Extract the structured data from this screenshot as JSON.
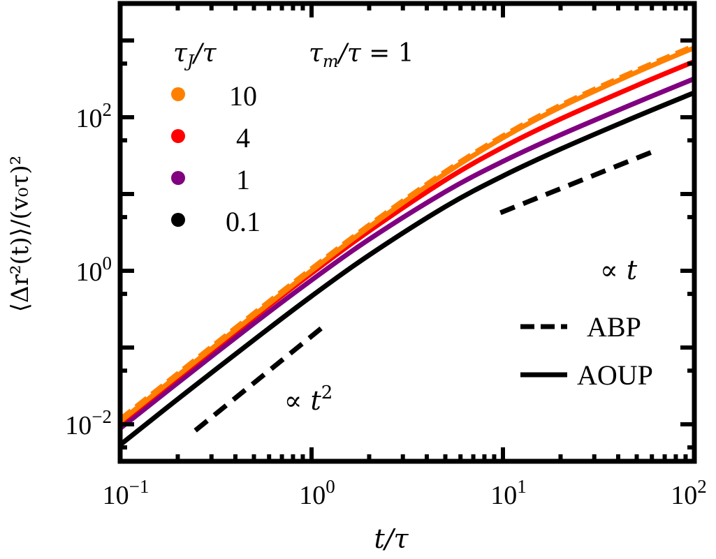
{
  "chart_data": {
    "type": "line",
    "xscale": "log",
    "yscale": "log",
    "xlim": [
      0.1,
      100
    ],
    "ylim": [
      0.0034,
      3000
    ],
    "xlabel": "t/τ",
    "ylabel": "⟨Δr²(t)⟩/(v₀τ)²",
    "xticks": [
      {
        "base": "10",
        "exp": "−1",
        "value": 0.1
      },
      {
        "base": "10",
        "exp": "0",
        "value": 1
      },
      {
        "base": "10",
        "exp": "1",
        "value": 10
      },
      {
        "base": "10",
        "exp": "2",
        "value": 100
      }
    ],
    "yticks": [
      {
        "base": "10",
        "exp": "−2",
        "value": 0.01
      },
      {
        "base": "10",
        "exp": "0",
        "value": 1
      },
      {
        "base": "10",
        "exp": "2",
        "value": 100
      }
    ],
    "legend_title": "τ_J/τ",
    "annotation": "τ_m/τ = 1",
    "legend_placement": "top-left",
    "x": [
      0.1,
      0.2,
      0.5,
      1,
      2,
      5,
      10,
      20,
      50,
      100
    ],
    "series": [
      {
        "name": "10",
        "model": "AOUP",
        "style": "solid",
        "color": "#ff8000",
        "values": [
          0.0109,
          0.0432,
          0.263,
          1.005,
          3.72,
          18.5,
          54,
          135.6,
          386,
          804
        ]
      },
      {
        "name": "10",
        "model": "ABP",
        "style": "dashed",
        "color": "#ff8000",
        "values": [
          0.0116,
          0.0458,
          0.279,
          1.065,
          3.94,
          19.6,
          57.2,
          143.7,
          409,
          852
        ]
      },
      {
        "name": "4",
        "model": "AOUP",
        "style": "solid",
        "color": "#ff0000",
        "values": [
          0.0104,
          0.0409,
          0.247,
          0.928,
          3.3,
          15.2,
          40.7,
          95,
          259,
          532
        ]
      },
      {
        "name": "1",
        "model": "AOUP",
        "style": "solid",
        "color": "#800080",
        "values": [
          0.00883,
          0.0347,
          0.206,
          0.755,
          2.57,
          10.7,
          26.6,
          59,
          156,
          318
        ]
      },
      {
        "name": "0.1",
        "model": "AOUP",
        "style": "solid",
        "color": "#000000",
        "values": [
          0.0054,
          0.0213,
          0.126,
          0.467,
          1.6,
          6.84,
          17.2,
          38.5,
          102.6,
          209
        ]
      }
    ],
    "guides": [
      {
        "label": "∝ t",
        "exp": "",
        "x": [
          9.7,
          63
        ],
        "y": [
          5.7,
          37
        ]
      },
      {
        "label": "∝ t",
        "exp": "2",
        "x": [
          0.247,
          1.19
        ],
        "y": [
          0.0083,
          0.2
        ]
      }
    ],
    "style_legend": [
      {
        "label": "ABP",
        "style": "dashed"
      },
      {
        "label": "AOUP",
        "style": "solid"
      }
    ],
    "legend_items": [
      {
        "label": "10",
        "color": "#ff8000"
      },
      {
        "label": "4",
        "color": "#ff0000"
      },
      {
        "label": "1",
        "color": "#800080"
      },
      {
        "label": "0.1",
        "color": "#000000"
      }
    ]
  }
}
